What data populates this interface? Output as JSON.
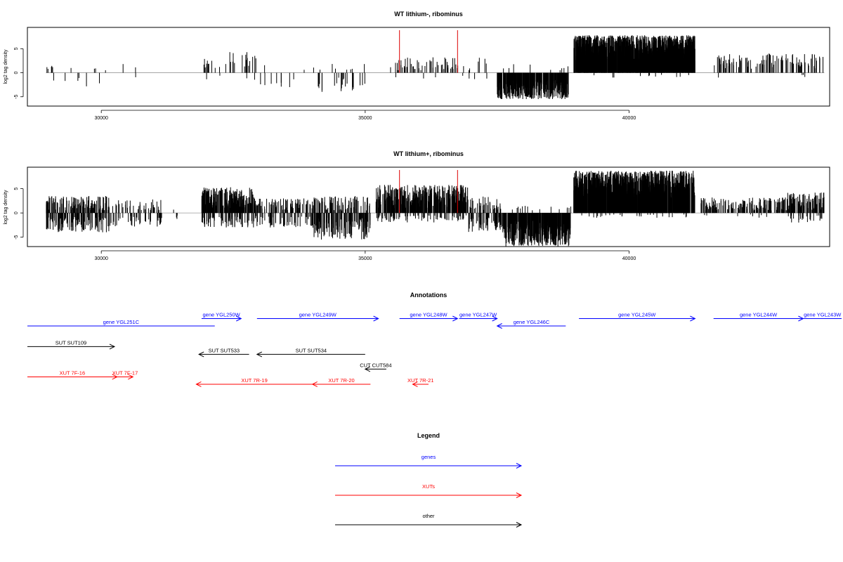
{
  "colors": {
    "genes": "#0000ff",
    "xuts": "#ff0000",
    "other": "#000000",
    "bars": "#000000",
    "markers": "#dd0000",
    "axis": "#000000"
  },
  "chart_data": [
    {
      "type": "bar",
      "title": "WT lithium-, ribominus",
      "ylabel": "log2 tag density",
      "xlim": [
        28600,
        43800
      ],
      "ylim": [
        -6.5,
        9
      ],
      "xticks": [
        30000,
        35000,
        40000
      ],
      "yticks": [
        5,
        0,
        -5
      ],
      "xtick_labels": [
        "30000",
        "35000",
        "40000"
      ],
      "ytick_labels": [
        "5",
        "0",
        "-5"
      ],
      "markers": [
        35650,
        36750
      ],
      "segments": [
        {
          "start": 28950,
          "end": 29200,
          "dens": 0.25,
          "pos": [
            0.5,
            1.6
          ],
          "neg": [
            -2.8,
            -0.6
          ],
          "p": 0.8
        },
        {
          "start": 29200,
          "end": 30100,
          "dens": 0.1,
          "pos": [
            0.4,
            1.2
          ],
          "neg": [
            -3.2,
            -0.6
          ],
          "p": 0.35
        },
        {
          "start": 30400,
          "end": 30900,
          "dens": 0.05,
          "pos": [
            0.8,
            2.0
          ],
          "neg": [
            -1.0,
            -0.3
          ],
          "p": 0.7
        },
        {
          "start": 31900,
          "end": 32050,
          "dens": 0.7,
          "pos": [
            1.0,
            3.0
          ],
          "neg": [
            -2.0,
            -0.5
          ],
          "p": 0.85
        },
        {
          "start": 32050,
          "end": 32400,
          "dens": 0.15,
          "pos": [
            1.0,
            3.0
          ],
          "neg": [
            -1.5,
            -0.5
          ],
          "p": 0.6
        },
        {
          "start": 32400,
          "end": 32950,
          "dens": 0.35,
          "pos": [
            1.0,
            4.3
          ],
          "neg": [
            -1.5,
            -0.5
          ],
          "p": 0.85
        },
        {
          "start": 32950,
          "end": 34050,
          "dens": 0.1,
          "pos": [
            0.5,
            1.8
          ],
          "neg": [
            -3.0,
            -0.8
          ],
          "p": 0.3
        },
        {
          "start": 34050,
          "end": 35000,
          "dens": 0.3,
          "pos": [
            0.5,
            2.0
          ],
          "neg": [
            -4.0,
            -1.0
          ],
          "p": 0.2
        },
        {
          "start": 35350,
          "end": 35600,
          "dens": 0.12,
          "pos": [
            1.0,
            2.5
          ],
          "neg": [
            -1.0,
            -0.5
          ],
          "p": 0.85
        },
        {
          "start": 35600,
          "end": 36800,
          "dens": 0.45,
          "pos": [
            0.5,
            3.3
          ],
          "neg": [
            -1.5,
            -0.5
          ],
          "p": 0.92
        },
        {
          "start": 36800,
          "end": 37500,
          "dens": 0.15,
          "pos": [
            0.5,
            3.2
          ],
          "neg": [
            -1.5,
            -0.5
          ],
          "p": 0.7
        },
        {
          "start": 37500,
          "end": 38850,
          "dens": 3.0,
          "pos": [
            0.5,
            2.0
          ],
          "neg": [
            -5.5,
            -1.5
          ],
          "p": 0.03
        },
        {
          "start": 38950,
          "end": 41250,
          "dens": 5.0,
          "pos": [
            2.5,
            7.8
          ],
          "neg": [
            -1.0,
            -0.3
          ],
          "p": 0.99
        },
        {
          "start": 41600,
          "end": 43700,
          "dens": 0.55,
          "pos": [
            0.8,
            4.0
          ],
          "neg": [
            -1.0,
            -0.3
          ],
          "p": 0.96
        }
      ]
    },
    {
      "type": "bar",
      "title": "WT lithium+, ribominus",
      "ylabel": "log2 tag density",
      "xlim": [
        28600,
        43800
      ],
      "ylim": [
        -6.5,
        9
      ],
      "xticks": [
        30000,
        35000,
        40000
      ],
      "yticks": [
        5,
        0,
        -5
      ],
      "xtick_labels": [
        "30000",
        "35000",
        "40000"
      ],
      "ytick_labels": [
        "5",
        "0",
        "-5"
      ],
      "markers": [
        35650,
        36750
      ],
      "segments": [
        {
          "start": 28950,
          "end": 30150,
          "dens": 2.2,
          "pos": [
            0.5,
            3.5
          ],
          "neg": [
            -4.0,
            -0.8
          ],
          "p": 0.55
        },
        {
          "start": 30150,
          "end": 31150,
          "dens": 0.8,
          "pos": [
            0.5,
            2.8
          ],
          "neg": [
            -2.8,
            -0.6
          ],
          "p": 0.5
        },
        {
          "start": 31300,
          "end": 31500,
          "dens": 0.2,
          "pos": [
            0.5,
            1.2
          ],
          "neg": [
            -2.0,
            -0.5
          ],
          "p": 0.3
        },
        {
          "start": 31900,
          "end": 32900,
          "dens": 3.0,
          "pos": [
            1.0,
            5.3
          ],
          "neg": [
            -3.0,
            -0.6
          ],
          "p": 0.8
        },
        {
          "start": 32900,
          "end": 34000,
          "dens": 1.3,
          "pos": [
            0.5,
            3.0
          ],
          "neg": [
            -3.0,
            -0.6
          ],
          "p": 0.5
        },
        {
          "start": 34000,
          "end": 35100,
          "dens": 2.0,
          "pos": [
            0.5,
            3.5
          ],
          "neg": [
            -5.5,
            -1.0
          ],
          "p": 0.4
        },
        {
          "start": 35200,
          "end": 36950,
          "dens": 2.7,
          "pos": [
            1.0,
            5.8
          ],
          "neg": [
            -2.0,
            -0.5
          ],
          "p": 0.85
        },
        {
          "start": 36950,
          "end": 37600,
          "dens": 1.5,
          "pos": [
            0.5,
            3.5
          ],
          "neg": [
            -4.0,
            -0.8
          ],
          "p": 0.35
        },
        {
          "start": 37600,
          "end": 38900,
          "dens": 3.2,
          "pos": [
            0.5,
            1.5
          ],
          "neg": [
            -7.0,
            -1.5
          ],
          "p": 0.03
        },
        {
          "start": 38950,
          "end": 41250,
          "dens": 5.0,
          "pos": [
            2.5,
            8.7
          ],
          "neg": [
            -1.0,
            -0.3
          ],
          "p": 0.98
        },
        {
          "start": 41350,
          "end": 43000,
          "dens": 1.0,
          "pos": [
            0.5,
            3.2
          ],
          "neg": [
            -1.0,
            -0.3
          ],
          "p": 0.95
        },
        {
          "start": 43000,
          "end": 43700,
          "dens": 1.8,
          "pos": [
            0.5,
            4.2
          ],
          "neg": [
            -2.0,
            -0.5
          ],
          "p": 0.8
        }
      ]
    }
  ],
  "annotations": {
    "title": "Annotations",
    "xlim": [
      28600,
      43800
    ],
    "items": [
      {
        "label": "gene YGL251C",
        "category": "genes",
        "start": 28600,
        "end": 32150,
        "row": 0,
        "dir": "none"
      },
      {
        "label": "gene YGL250W",
        "category": "genes",
        "start": 31900,
        "end": 32650,
        "row": -1,
        "dir": "right"
      },
      {
        "label": "gene YGL249W",
        "category": "genes",
        "start": 32950,
        "end": 35250,
        "row": -1,
        "dir": "right"
      },
      {
        "label": "gene YGL248W",
        "category": "genes",
        "start": 35650,
        "end": 36750,
        "row": -1,
        "dir": "right"
      },
      {
        "label": "gene YGL247W",
        "category": "genes",
        "start": 36780,
        "end": 37500,
        "row": -1,
        "dir": "right"
      },
      {
        "label": "gene YGL246C",
        "category": "genes",
        "start": 37500,
        "end": 38800,
        "row": 0,
        "dir": "left"
      },
      {
        "label": "gene YGL245W",
        "category": "genes",
        "start": 39050,
        "end": 41250,
        "row": -1,
        "dir": "right"
      },
      {
        "label": "gene YGL244W",
        "category": "genes",
        "start": 41600,
        "end": 43300,
        "row": -1,
        "dir": "right"
      },
      {
        "label": "gene YGL243W",
        "category": "genes",
        "start": 43300,
        "end": 44100,
        "row": -1,
        "dir": "none"
      },
      {
        "label": "SUT SUT109",
        "category": "other",
        "start": 28600,
        "end": 30250,
        "row": 2.8,
        "dir": "right"
      },
      {
        "label": "SUT SUT533",
        "category": "other",
        "start": 31850,
        "end": 32800,
        "row": 3.85,
        "dir": "left"
      },
      {
        "label": "SUT SUT534",
        "category": "other",
        "start": 32950,
        "end": 35000,
        "row": 3.85,
        "dir": "left"
      },
      {
        "label": "CUT CUT584",
        "category": "other",
        "start": 35000,
        "end": 35400,
        "row": 5.85,
        "dir": "left"
      },
      {
        "label": "XUT 7F-16",
        "category": "xuts",
        "start": 28600,
        "end": 30300,
        "row": 6.9,
        "dir": "right"
      },
      {
        "label": "XUT 7F-17",
        "category": "xuts",
        "start": 30300,
        "end": 30600,
        "row": 6.9,
        "dir": "right"
      },
      {
        "label": "XUT 7R-19",
        "category": "xuts",
        "start": 31800,
        "end": 34000,
        "row": 7.9,
        "dir": "left"
      },
      {
        "label": "XUT 7R-20",
        "category": "xuts",
        "start": 34000,
        "end": 35100,
        "row": 7.9,
        "dir": "left"
      },
      {
        "label": "XUT 7R-21",
        "category": "xuts",
        "start": 35900,
        "end": 36200,
        "row": 7.9,
        "dir": "left"
      }
    ]
  },
  "legend": {
    "title": "Legend",
    "entries": [
      {
        "label": "genes",
        "category": "genes"
      },
      {
        "label": "XUTs",
        "category": "xuts"
      },
      {
        "label": "other",
        "category": "other"
      }
    ]
  }
}
